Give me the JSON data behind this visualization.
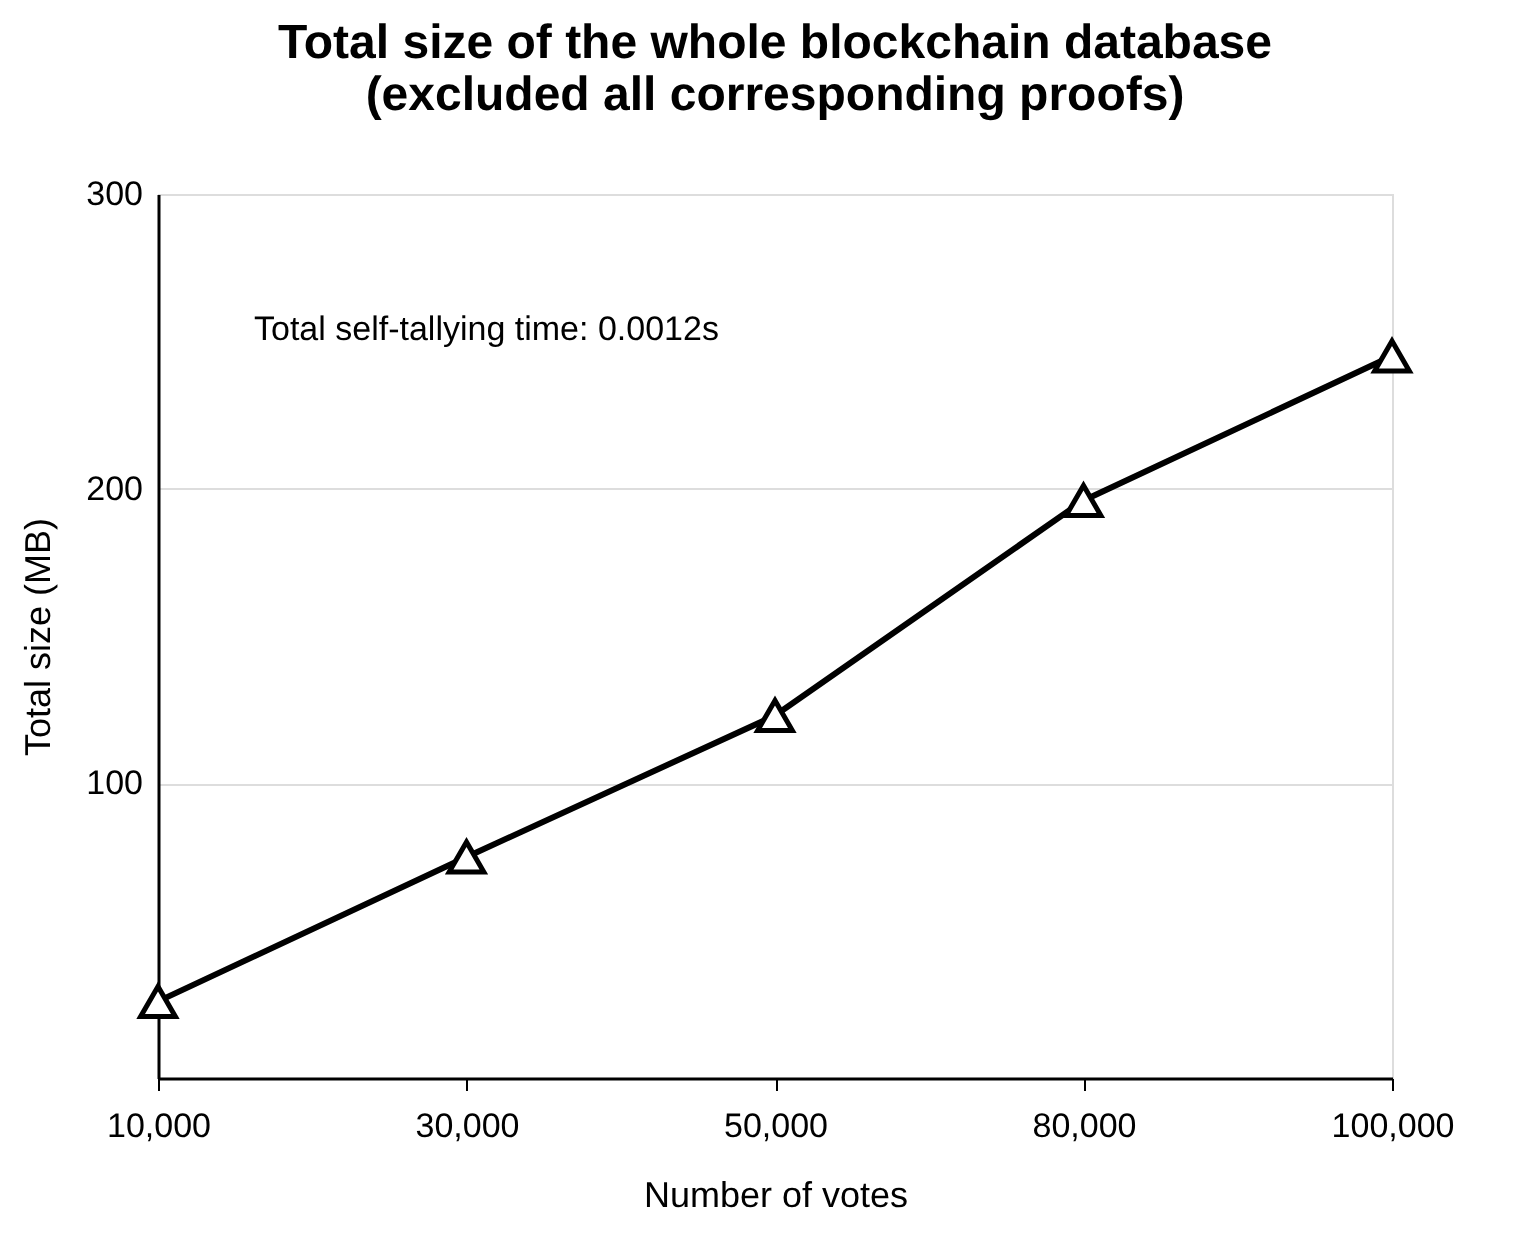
{
  "chart_data": {
    "type": "line",
    "title": [
      "Total size of the whole blockchain database",
      "(excluded all corresponding proofs)"
    ],
    "xlabel": "Number of votes",
    "ylabel": "Total size (MB)",
    "categories": [
      "10,000",
      "30,000",
      "50,000",
      "80,000",
      "100,000"
    ],
    "series": [
      {
        "color": "#000000",
        "values": [
          26,
          75,
          123,
          196,
          245
        ]
      }
    ],
    "ylim": [
      0,
      300
    ],
    "yticks": [
      100,
      200,
      300
    ],
    "grid": "y",
    "marker": "triangle",
    "line_style": "solid",
    "annotations": [
      "Total self-tallying time: 0.0012s"
    ]
  }
}
